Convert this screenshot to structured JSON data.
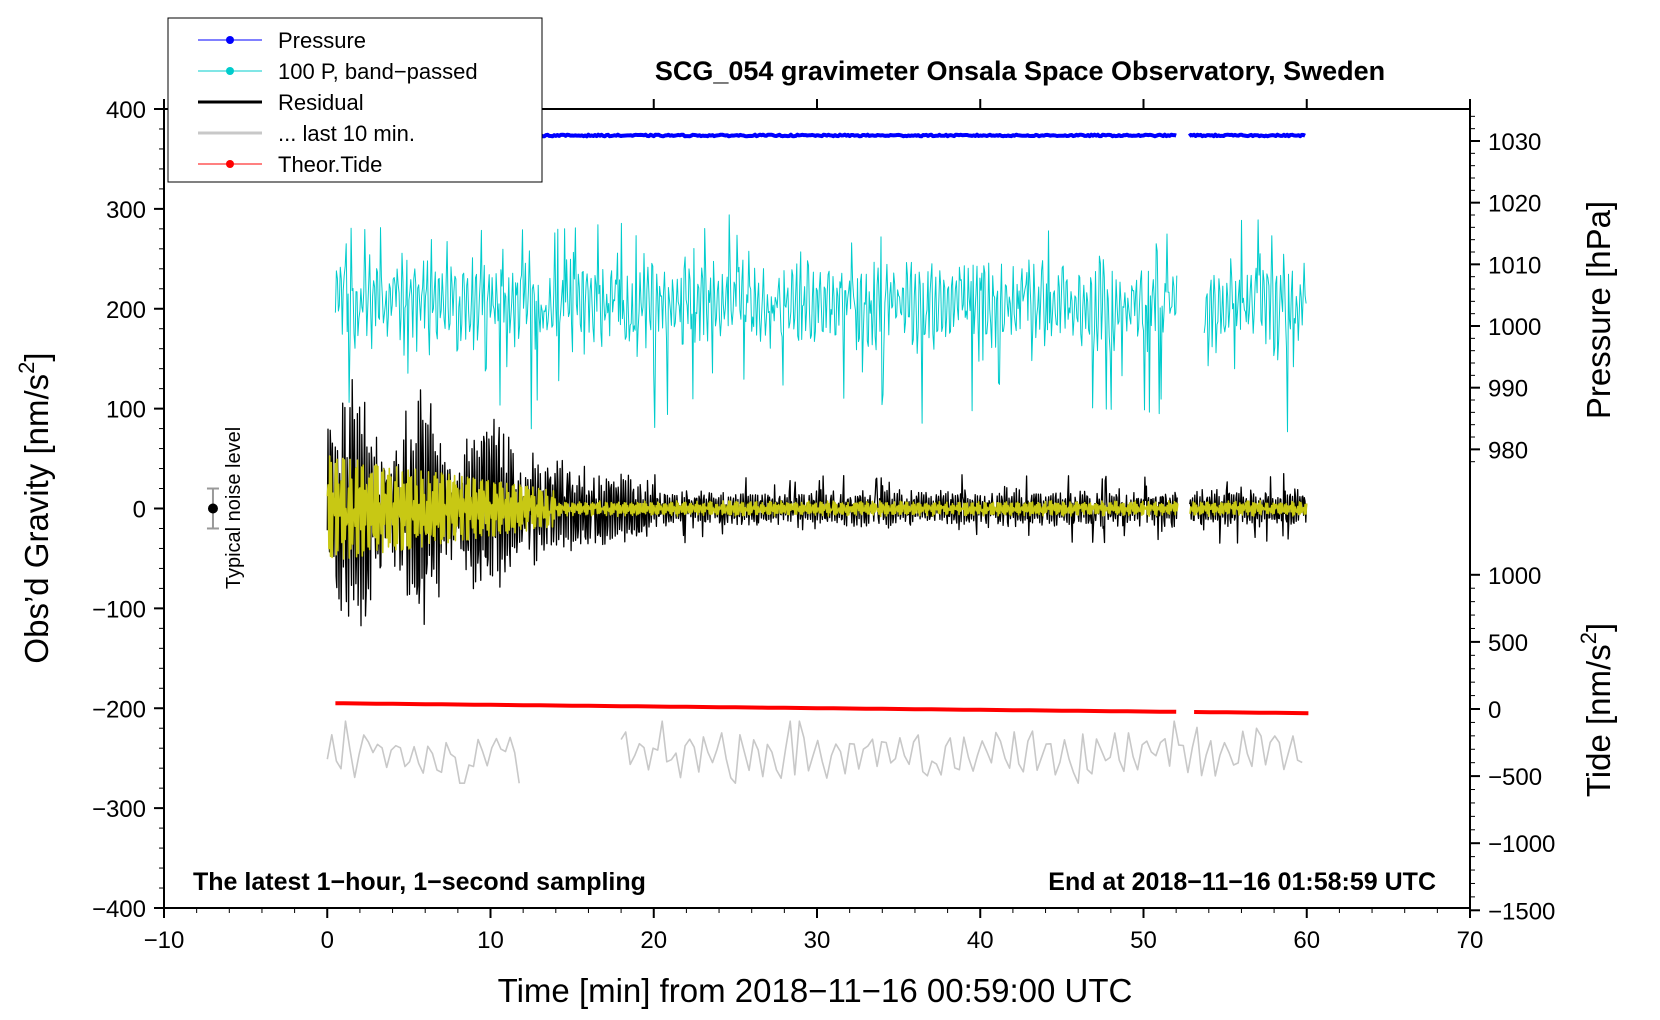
{
  "chart_data": {
    "type": "line",
    "title": "SCG_054 gravimeter Onsala Space Observatory, Sweden",
    "xlabel": "Time [min] from 2018−11−16 00:59:00 UTC",
    "ylabel_left_main": "Obs’d Gravity [nm/s",
    "ylabel_left_sup": "2",
    "ylabel_left_close": "]",
    "ylabel_right_pressure": "Pressure [hPa]",
    "ylabel_right_tide_main": "Tide [nm/s",
    "ylabel_right_tide_sup": "2",
    "ylabel_right_tide_close": "]",
    "xlim": [
      -10,
      70
    ],
    "ylim_left": [
      -400,
      400
    ],
    "ylim_pressure_ticks": [
      980,
      1030
    ],
    "ylim_tide_ticks": [
      -1500,
      1000
    ],
    "x_ticks": [
      "−10",
      "0",
      "10",
      "20",
      "30",
      "40",
      "50",
      "60",
      "70"
    ],
    "x_tick_values": [
      -10,
      0,
      10,
      20,
      30,
      40,
      50,
      60,
      70
    ],
    "y_left_ticks": [
      "400",
      "300",
      "200",
      "100",
      "0",
      "−100",
      "−200",
      "−300",
      "−400"
    ],
    "y_left_tick_values": [
      400,
      300,
      200,
      100,
      0,
      -100,
      -200,
      -300,
      -400
    ],
    "y_pressure_ticks": [
      "1030",
      "1020",
      "1010",
      "1000",
      "990",
      "980"
    ],
    "y_pressure_tick_values": [
      1030,
      1020,
      1010,
      1000,
      990,
      980
    ],
    "y_tide_ticks": [
      "1000",
      "500",
      "0",
      "−500",
      "−1000",
      "−1500"
    ],
    "y_tide_tick_values": [
      1000,
      500,
      0,
      -500,
      -1000,
      -1500
    ],
    "legend": [
      {
        "label": "Pressure",
        "color": "#0000ff",
        "marker": true
      },
      {
        "label": "100 P, band−passed",
        "color": "#00cccc",
        "marker": true
      },
      {
        "label": "Residual",
        "color": "#000000",
        "marker": false
      },
      {
        "label": "... last 10 min.",
        "color": "#c8c8c8",
        "marker": false
      },
      {
        "label": "Theor.Tide",
        "color": "#ff0000",
        "marker": true
      }
    ],
    "legend_placement": "top-left",
    "annotations": {
      "bottom_left": "The latest 1−hour, 1−second sampling",
      "bottom_right": "End at 2018−11−16 01:58:59 UTC",
      "noise_label": "Typical noise level"
    },
    "noise_level": {
      "x": -7,
      "y": 0,
      "low": -20,
      "high": 20
    },
    "series": [
      {
        "name": "Pressure",
        "color": "#0000ff",
        "axis": "left",
        "x_range": [
          0,
          60
        ],
        "gap": [
          52.1,
          52.8
        ],
        "level": 373.5,
        "noise": 0.8
      },
      {
        "name": "100 P, band−passed",
        "color": "#00cccc",
        "axis": "left",
        "x_range": [
          0.5,
          60
        ],
        "gap": [
          52.1,
          53.7
        ],
        "level": 205,
        "amplitude": 40
      },
      {
        "name": "Residual",
        "color": "#000000",
        "axis": "left",
        "x_range": [
          0,
          60
        ],
        "gap": [
          52.1,
          52.8
        ],
        "level": 0,
        "amplitude_start": 140,
        "amplitude_end": 14
      },
      {
        "name": "Filtered residual",
        "color": "#c8c814",
        "axis": "left",
        "x_range": [
          0,
          60
        ],
        "gap": [
          52.1,
          52.8
        ],
        "level": 0,
        "amplitude_start": 45,
        "amplitude_end": 5
      },
      {
        "name": "... last 10 min.",
        "color": "#c8c8c8",
        "axis": "left",
        "segments": [
          [
            0,
            12
          ],
          [
            18,
            60
          ]
        ],
        "level": -245,
        "amplitude": 18
      },
      {
        "name": "Theor.Tide",
        "color": "#ff0000",
        "axis": "left",
        "x_range": [
          0.5,
          60.5
        ],
        "gap": [
          52.1,
          53.1
        ],
        "y_start": -195,
        "y_end": -205
      }
    ]
  }
}
